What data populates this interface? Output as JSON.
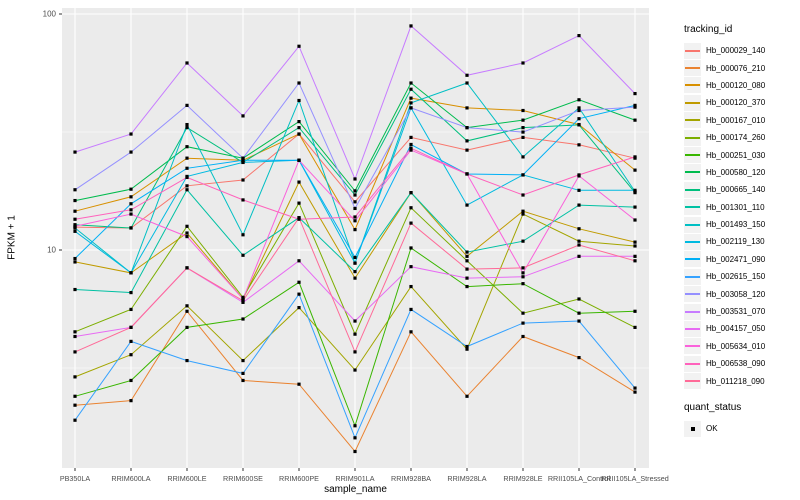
{
  "figure": {
    "background": "#FFFFFF",
    "panel_background": "#EBEBEB",
    "grid_color": "#FFFFFF",
    "tick_mark_color": "#333333",
    "tick_label_color": "#4D4D4D",
    "point_color": "#000000"
  },
  "chart_data": {
    "type": "line",
    "title": "",
    "x_axis_label": "sample_name",
    "y_axis_label": "FPKM + 1",
    "y_scale": "log10",
    "ylim": [
      1,
      100
    ],
    "y_major_ticks": [
      100,
      10
    ],
    "y_minor_ticks": [
      31.62,
      3.162
    ],
    "grid": "white-on-gray",
    "point_marker": "filled-square",
    "legend_position": "right",
    "legend_titles": {
      "tracking": "tracking_id",
      "quant": "quant_status"
    },
    "quant_status_items": [
      "OK"
    ],
    "categories": [
      "PB350LA",
      "RRIM600LA",
      "RRIM600LE",
      "RRIM600SE",
      "RRIM600PE",
      "RRIM901LA",
      "RRIM928BA",
      "RRIM928LA",
      "RRIM928LE",
      "RRII105LA_Control",
      "RRII105LA_Stressed"
    ],
    "series": [
      {
        "name": "Hb_000029_140",
        "color": "#F8766D",
        "values": [
          12.5,
          12.4,
          18.7,
          19.8,
          31,
          16,
          30,
          26.5,
          30,
          27.9,
          24.5
        ]
      },
      {
        "name": "Hb_000076_210",
        "color": "#EA8331",
        "values": [
          2.2,
          2.3,
          5.5,
          2.8,
          2.7,
          1.4,
          4.5,
          2.4,
          4.3,
          3.5,
          2.5
        ]
      },
      {
        "name": "Hb_000120_080",
        "color": "#D89000",
        "values": [
          14.6,
          16.8,
          24.5,
          24,
          31,
          12.2,
          44,
          40,
          39,
          34,
          21.8
        ]
      },
      {
        "name": "Hb_000120_370",
        "color": "#C09B00",
        "values": [
          8.9,
          8.0,
          11.8,
          6.2,
          19.4,
          7.6,
          17.5,
          9.4,
          14.6,
          12.3,
          10.8
        ]
      },
      {
        "name": "Hb_000167_010",
        "color": "#A3A500",
        "values": [
          2.9,
          3.6,
          5.8,
          3.4,
          5.7,
          3.1,
          7.0,
          3.8,
          14.2,
          10.9,
          10.4
        ]
      },
      {
        "name": "Hb_000174_260",
        "color": "#7CAE00",
        "values": [
          4.5,
          5.6,
          12.6,
          6.3,
          15.8,
          4.4,
          15.1,
          9.0,
          5.4,
          6.2,
          4.7
        ]
      },
      {
        "name": "Hb_000251_030",
        "color": "#39B600",
        "values": [
          2.4,
          2.8,
          4.7,
          5.1,
          7.3,
          1.8,
          10.2,
          7.0,
          7.2,
          5.4,
          5.5
        ]
      },
      {
        "name": "Hb_000580_120",
        "color": "#00BB4E",
        "values": [
          16.2,
          18.1,
          27.4,
          24.5,
          35,
          17.8,
          51,
          33,
          35.5,
          43.3,
          35.5
        ]
      },
      {
        "name": "Hb_000665_140",
        "color": "#00BF7D",
        "values": [
          12.8,
          12.4,
          33,
          23.5,
          33,
          17.1,
          48,
          29,
          33,
          33.9,
          17.5
        ]
      },
      {
        "name": "Hb_001301_110",
        "color": "#00C1A3",
        "values": [
          6.8,
          6.6,
          18,
          9.5,
          13.7,
          8.1,
          17.5,
          9.8,
          10.9,
          15.5,
          15.2
        ]
      },
      {
        "name": "Hb_001493_150",
        "color": "#00BFC4",
        "values": [
          12.4,
          8.0,
          34,
          11.6,
          43,
          8.8,
          42,
          51,
          24.8,
          40,
          17.7
        ]
      },
      {
        "name": "Hb_002119_130",
        "color": "#00BAE0",
        "values": [
          12.0,
          8.0,
          20.5,
          23.5,
          24,
          8.8,
          40,
          15.5,
          20.8,
          17.9,
          17.9
        ]
      },
      {
        "name": "Hb_002471_090",
        "color": "#00B0F6",
        "values": [
          9.2,
          15.7,
          22.2,
          24,
          24,
          9.3,
          28,
          21,
          20.8,
          36,
          41
        ]
      },
      {
        "name": "Hb_002615_150",
        "color": "#35A2FF",
        "values": [
          1.9,
          4.1,
          3.4,
          3.0,
          6.5,
          1.6,
          5.6,
          3.9,
          4.9,
          5.0,
          2.6
        ]
      },
      {
        "name": "Hb_003058_120",
        "color": "#9590FF",
        "values": [
          18,
          26,
          41,
          24.5,
          51,
          15,
          40,
          33,
          31.6,
          39,
          40.3
        ]
      },
      {
        "name": "Hb_003531_070",
        "color": "#C77CFF",
        "values": [
          26,
          31,
          62,
          37,
          73,
          20,
          89,
          55,
          62,
          81,
          46
        ]
      },
      {
        "name": "Hb_004157_050",
        "color": "#E76BF3",
        "values": [
          4.3,
          4.7,
          8.4,
          6.0,
          9.0,
          5.0,
          8.5,
          7.6,
          7.7,
          9.4,
          9.4
        ]
      },
      {
        "name": "Hb_005634_010",
        "color": "#FA62DB",
        "values": [
          12.6,
          14.2,
          11.4,
          6.2,
          24,
          13.3,
          26.5,
          21,
          8.0,
          20.6,
          13.4
        ]
      },
      {
        "name": "Hb_006538_090",
        "color": "#FF62BC",
        "values": [
          13.5,
          14.8,
          20.3,
          16.3,
          13.5,
          13.8,
          27,
          21,
          17.1,
          20.8,
          24.8
        ]
      },
      {
        "name": "Hb_011218_090",
        "color": "#FF6A98",
        "values": [
          3.7,
          4.7,
          8.4,
          6.1,
          13.7,
          3.7,
          13.0,
          8.3,
          8.4,
          10.5,
          9.0
        ]
      }
    ]
  }
}
